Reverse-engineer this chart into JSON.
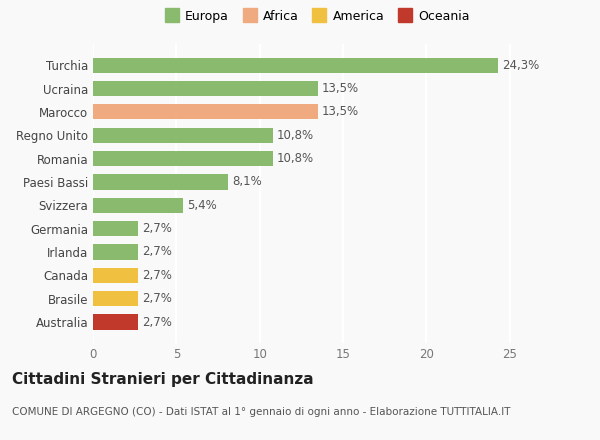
{
  "categories": [
    "Australia",
    "Brasile",
    "Canada",
    "Irlanda",
    "Germania",
    "Svizzera",
    "Paesi Bassi",
    "Romania",
    "Regno Unito",
    "Marocco",
    "Ucraina",
    "Turchia"
  ],
  "values": [
    2.7,
    2.7,
    2.7,
    2.7,
    2.7,
    5.4,
    8.1,
    10.8,
    10.8,
    13.5,
    13.5,
    24.3
  ],
  "labels": [
    "2,7%",
    "2,7%",
    "2,7%",
    "2,7%",
    "2,7%",
    "5,4%",
    "8,1%",
    "10,8%",
    "10,8%",
    "13,5%",
    "13,5%",
    "24,3%"
  ],
  "colors": [
    "#c0392b",
    "#f0c040",
    "#f0c040",
    "#8aba6e",
    "#8aba6e",
    "#8aba6e",
    "#8aba6e",
    "#8aba6e",
    "#8aba6e",
    "#f0aa80",
    "#8aba6e",
    "#8aba6e"
  ],
  "legend": [
    {
      "label": "Europa",
      "color": "#8aba6e"
    },
    {
      "label": "Africa",
      "color": "#f0aa80"
    },
    {
      "label": "America",
      "color": "#f0c040"
    },
    {
      "label": "Oceania",
      "color": "#c0392b"
    }
  ],
  "xlim": [
    0,
    27
  ],
  "xticks": [
    0,
    5,
    10,
    15,
    20,
    25
  ],
  "title": "Cittadini Stranieri per Cittadinanza",
  "subtitle": "COMUNE DI ARGEGNO (CO) - Dati ISTAT al 1° gennaio di ogni anno - Elaborazione TUTTITALIA.IT",
  "background_color": "#f9f9f9",
  "grid_color": "#ffffff",
  "label_fontsize": 8.5,
  "title_fontsize": 11,
  "subtitle_fontsize": 7.5,
  "tick_fontsize": 8.5
}
